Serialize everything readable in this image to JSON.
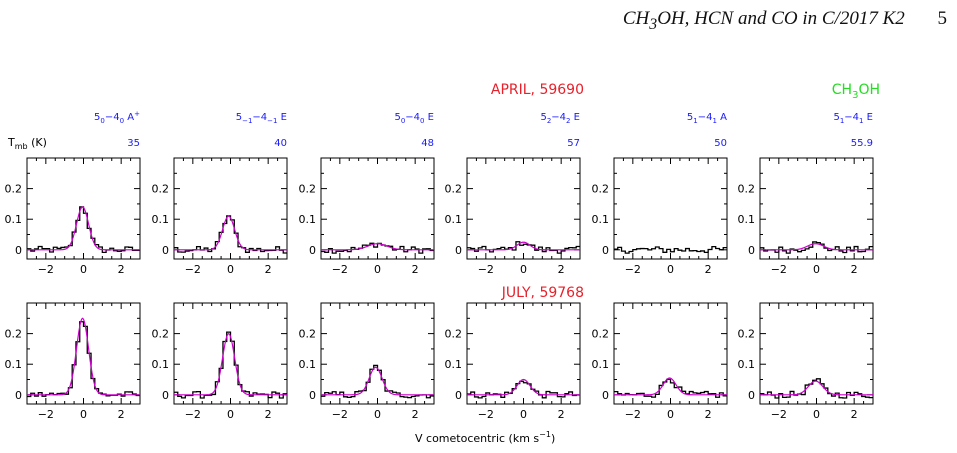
{
  "page": {
    "title_html": "CH<sub>3</sub>OH, HCN and CO in C/2017 K2",
    "page_number": "5"
  },
  "figure": {
    "row_labels": [
      {
        "text": "APRIL, 59690",
        "color": "#e8202a"
      },
      {
        "text": "JULY, 59768",
        "color": "#e8202a"
      }
    ],
    "molecule_label": {
      "main": "CH",
      "sub": "3",
      "rest": "OH",
      "color": "#22dd22"
    },
    "ylabel": {
      "main": "T",
      "sub": "mb",
      "rest": " (K)"
    },
    "xlabel": {
      "main": "V cometocentric (km s",
      "sup": "−1",
      "rest": ")"
    },
    "transition_color": "#1a1aff",
    "transitions": [
      {
        "label": "5_0−4_0 A^+",
        "energy": "35"
      },
      {
        "label": "5_−1−4_−1 E",
        "energy": "40"
      },
      {
        "label": "5_0−4_0 E",
        "energy": "48"
      },
      {
        "label": "5_2−4_2 E",
        "energy": "57"
      },
      {
        "label": "5_1−4_1 A",
        "energy": "50"
      },
      {
        "label": "5_1−4_1 E",
        "energy": "55.9"
      }
    ]
  },
  "chart_data": {
    "type": "line",
    "description_units": {
      "x": "km s-1",
      "y": "K"
    },
    "xlim": [
      -3,
      3
    ],
    "ylim": [
      -0.03,
      0.3
    ],
    "xticks": [
      -2,
      0,
      2
    ],
    "yticks": [
      0,
      0.1,
      0.2
    ],
    "xtick_labels": [
      "−2",
      "0",
      "2"
    ],
    "ytick_labels": [
      "0",
      "0.1",
      "0.2"
    ],
    "spectrum_color": "#000000",
    "fit_color": "#cc00cc",
    "panels": [
      {
        "row": "APRIL, 59690",
        "transition": "5_0−4_0 A^+",
        "peak": 0.14,
        "center": -0.05,
        "fwhm": 0.75,
        "has_fit": true
      },
      {
        "row": "APRIL, 59690",
        "transition": "5_−1−4_−1 E",
        "peak": 0.11,
        "center": -0.1,
        "fwhm": 0.75,
        "has_fit": true
      },
      {
        "row": "APRIL, 59690",
        "transition": "5_0−4_0 E",
        "peak": 0.02,
        "center": 0.0,
        "fwhm": 1.2,
        "has_fit": true
      },
      {
        "row": "APRIL, 59690",
        "transition": "5_2−4_2 E",
        "peak": 0.025,
        "center": 0.0,
        "fwhm": 0.8,
        "has_fit": true
      },
      {
        "row": "APRIL, 59690",
        "transition": "5_1−4_1 A",
        "peak": 0.0,
        "center": 0.0,
        "fwhm": 0.8,
        "has_fit": false
      },
      {
        "row": "APRIL, 59690",
        "transition": "5_1−4_1 E",
        "peak": 0.02,
        "center": -0.05,
        "fwhm": 1.0,
        "has_fit": true
      },
      {
        "row": "JULY, 59768",
        "transition": "5_0−4_0 A^+",
        "peak": 0.25,
        "center": -0.05,
        "fwhm": 0.75,
        "has_fit": true
      },
      {
        "row": "JULY, 59768",
        "transition": "5_−1−4_−1 E",
        "peak": 0.2,
        "center": -0.1,
        "fwhm": 0.75,
        "has_fit": true
      },
      {
        "row": "JULY, 59768",
        "transition": "5_0−4_0 E",
        "peak": 0.09,
        "center": -0.1,
        "fwhm": 0.8,
        "has_fit": true
      },
      {
        "row": "JULY, 59768",
        "transition": "5_2−4_2 E",
        "peak": 0.05,
        "center": 0.0,
        "fwhm": 0.8,
        "has_fit": true
      },
      {
        "row": "JULY, 59768",
        "transition": "5_1−4_1 A",
        "peak": 0.055,
        "center": -0.05,
        "fwhm": 0.8,
        "has_fit": true
      },
      {
        "row": "JULY, 59768",
        "transition": "5_1−4_1 E",
        "peak": 0.045,
        "center": -0.05,
        "fwhm": 0.9,
        "has_fit": true
      }
    ]
  }
}
